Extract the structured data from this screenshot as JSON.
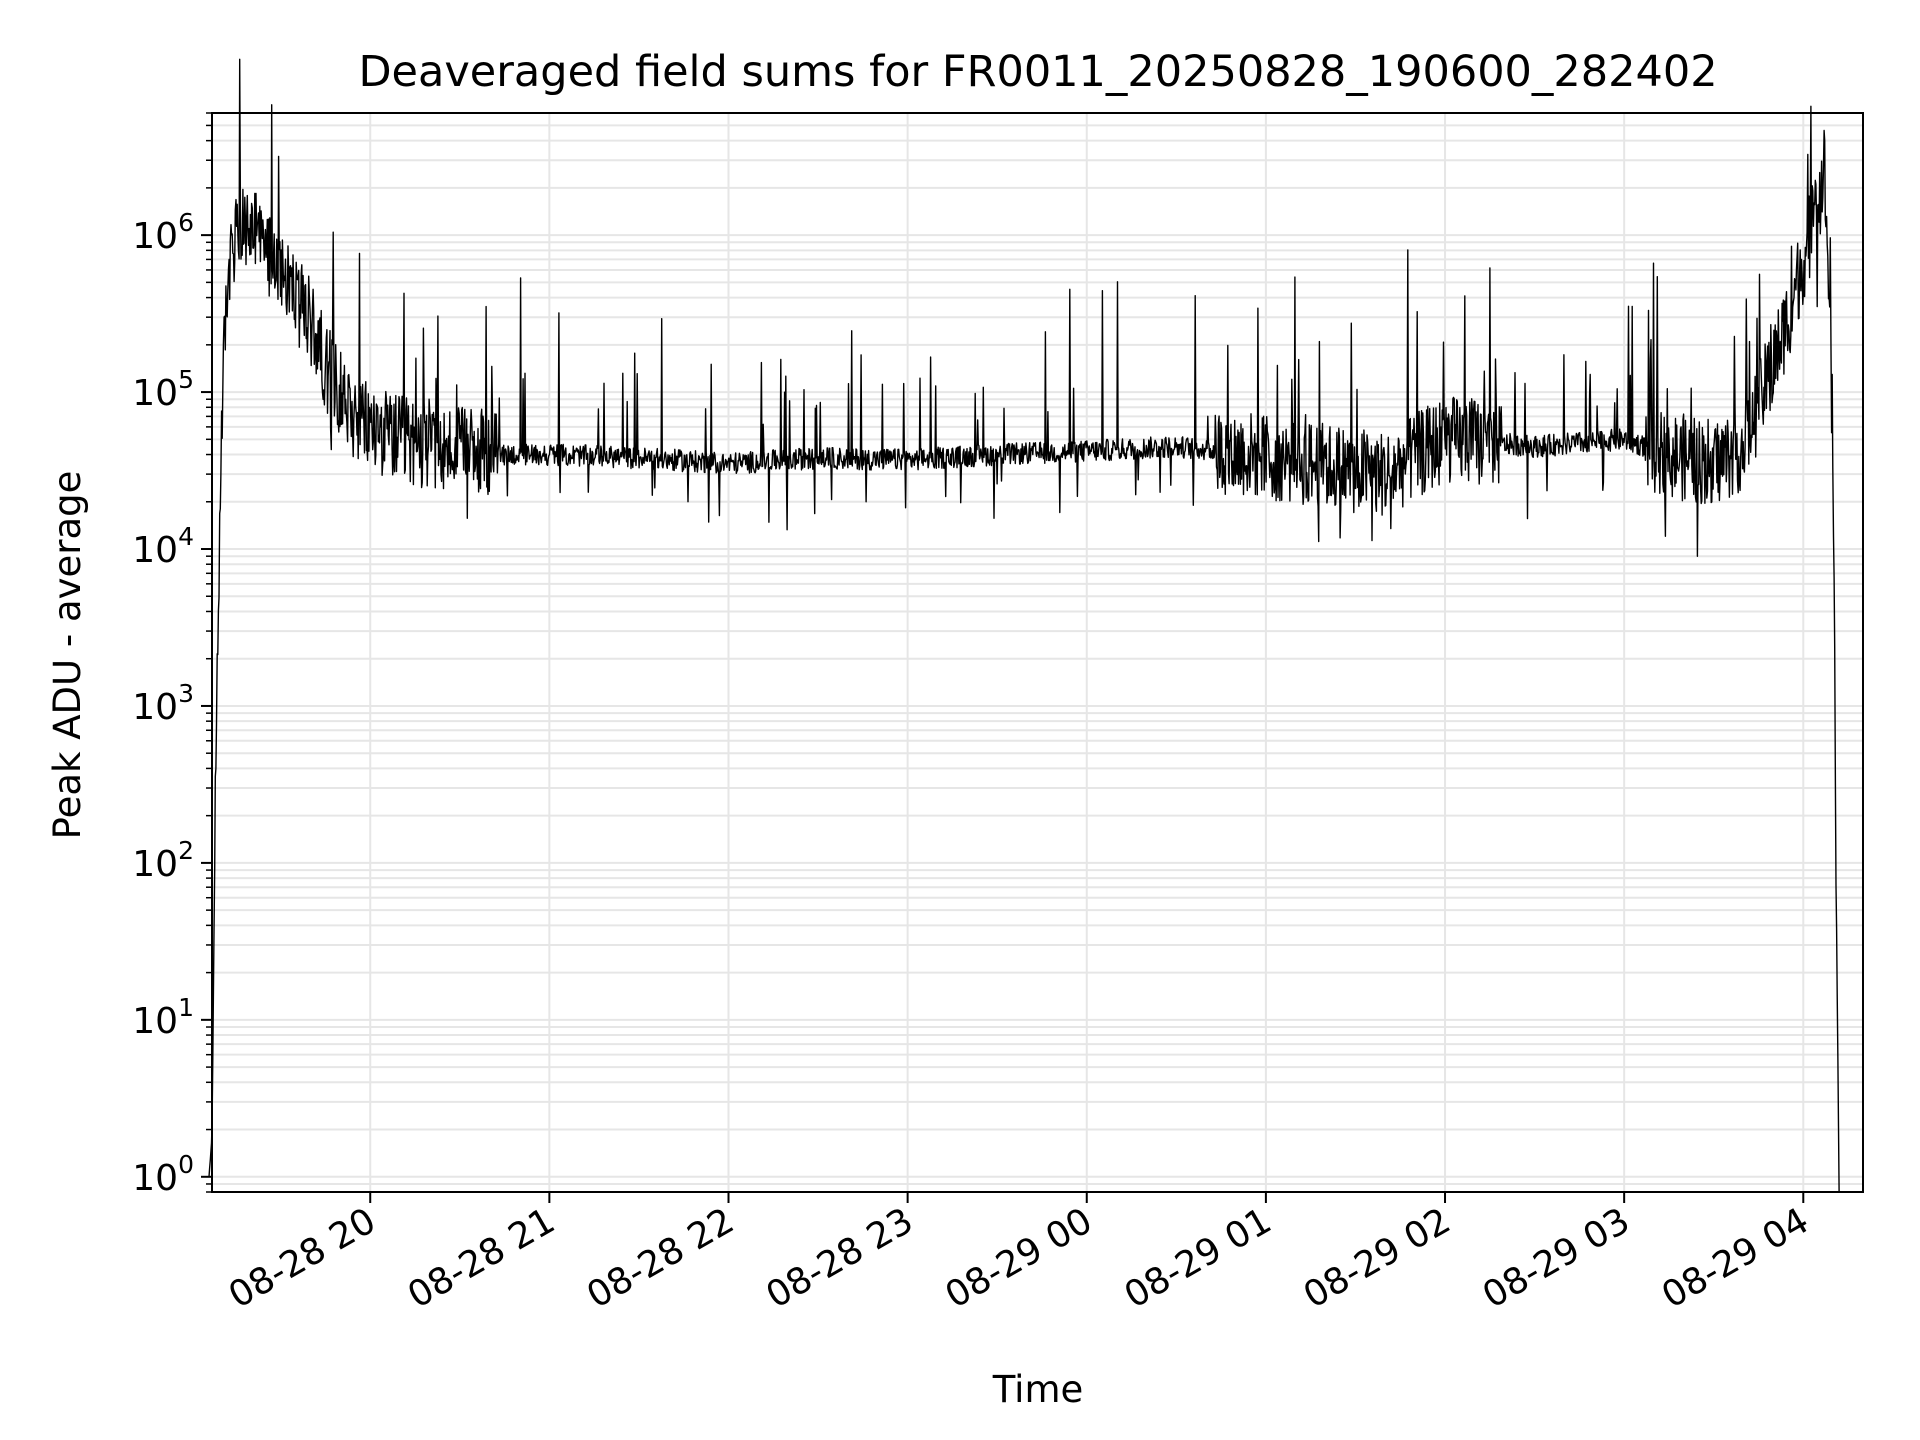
{
  "chart_data": {
    "type": "line",
    "title": "Deaveraged field sums for FR0011_20250828_190600_282402",
    "xlabel": "Time",
    "ylabel": "Peak ADU - average",
    "yscale": "log",
    "x_range": [
      "2025-08-28 19:07",
      "2025-08-29 04:20"
    ],
    "ylim": [
      0.8,
      6000000
    ],
    "grid": "on (major and minor)",
    "x_ticks": [
      "08-28 20",
      "08-28 21",
      "08-28 22",
      "08-28 23",
      "08-29 00",
      "08-29 01",
      "08-29 02",
      "08-29 03",
      "08-29 04"
    ],
    "y_ticks": [
      {
        "base": "10",
        "exp": "0",
        "value": 1
      },
      {
        "base": "10",
        "exp": "1",
        "value": 10
      },
      {
        "base": "10",
        "exp": "2",
        "value": 100
      },
      {
        "base": "10",
        "exp": "3",
        "value": 1000
      },
      {
        "base": "10",
        "exp": "4",
        "value": 10000
      },
      {
        "base": "10",
        "exp": "5",
        "value": 100000
      },
      {
        "base": "10",
        "exp": "6",
        "value": 1000000
      }
    ],
    "line_color": "#000000",
    "grid_color": "#e6e6e6",
    "series": [
      {
        "x": [
          "2025-08-28 19:06",
          "2025-08-28 19:07",
          "2025-08-28 19:08",
          "2025-08-28 19:10",
          "2025-08-28 19:12",
          "2025-08-28 19:15",
          "2025-08-28 19:20",
          "2025-08-28 19:25",
          "2025-08-28 19:30",
          "2025-08-28 19:35",
          "2025-08-28 19:40",
          "2025-08-28 19:45",
          "2025-08-28 19:50",
          "2025-08-28 19:55",
          "2025-08-28 20:00",
          "2025-08-28 20:10",
          "2025-08-28 20:20",
          "2025-08-28 20:30",
          "2025-08-28 20:45",
          "2025-08-28 21:00",
          "2025-08-28 21:30",
          "2025-08-28 22:00",
          "2025-08-28 22:30",
          "2025-08-28 23:00",
          "2025-08-28 23:30",
          "2025-08-29 00:00",
          "2025-08-29 00:30",
          "2025-08-29 00:55",
          "2025-08-29 01:15",
          "2025-08-29 01:40",
          "2025-08-29 02:00",
          "2025-08-29 02:30",
          "2025-08-29 03:00",
          "2025-08-29 03:15",
          "2025-08-29 03:30",
          "2025-08-29 03:40",
          "2025-08-29 03:50",
          "2025-08-29 03:55",
          "2025-08-29 04:00",
          "2025-08-29 04:05",
          "2025-08-29 04:07",
          "2025-08-29 04:08",
          "2025-08-29 04:09",
          "2025-08-29 04:10",
          "2025-08-29 04:11",
          "2025-08-29 04:12"
        ],
        "y": [
          1,
          1.8,
          150,
          50000,
          500000,
          1000000,
          1100000,
          800000,
          700000,
          400000,
          280000,
          150000,
          100000,
          70000,
          60000,
          50000,
          45000,
          42000,
          40000,
          40000,
          38000,
          35000,
          38000,
          37000,
          40000,
          42000,
          45000,
          40000,
          35000,
          30000,
          50000,
          45000,
          50000,
          40000,
          35000,
          45000,
          150000,
          300000,
          700000,
          1500000,
          2800000,
          1000000,
          200000,
          30000,
          80,
          0.8
        ]
      }
    ]
  }
}
